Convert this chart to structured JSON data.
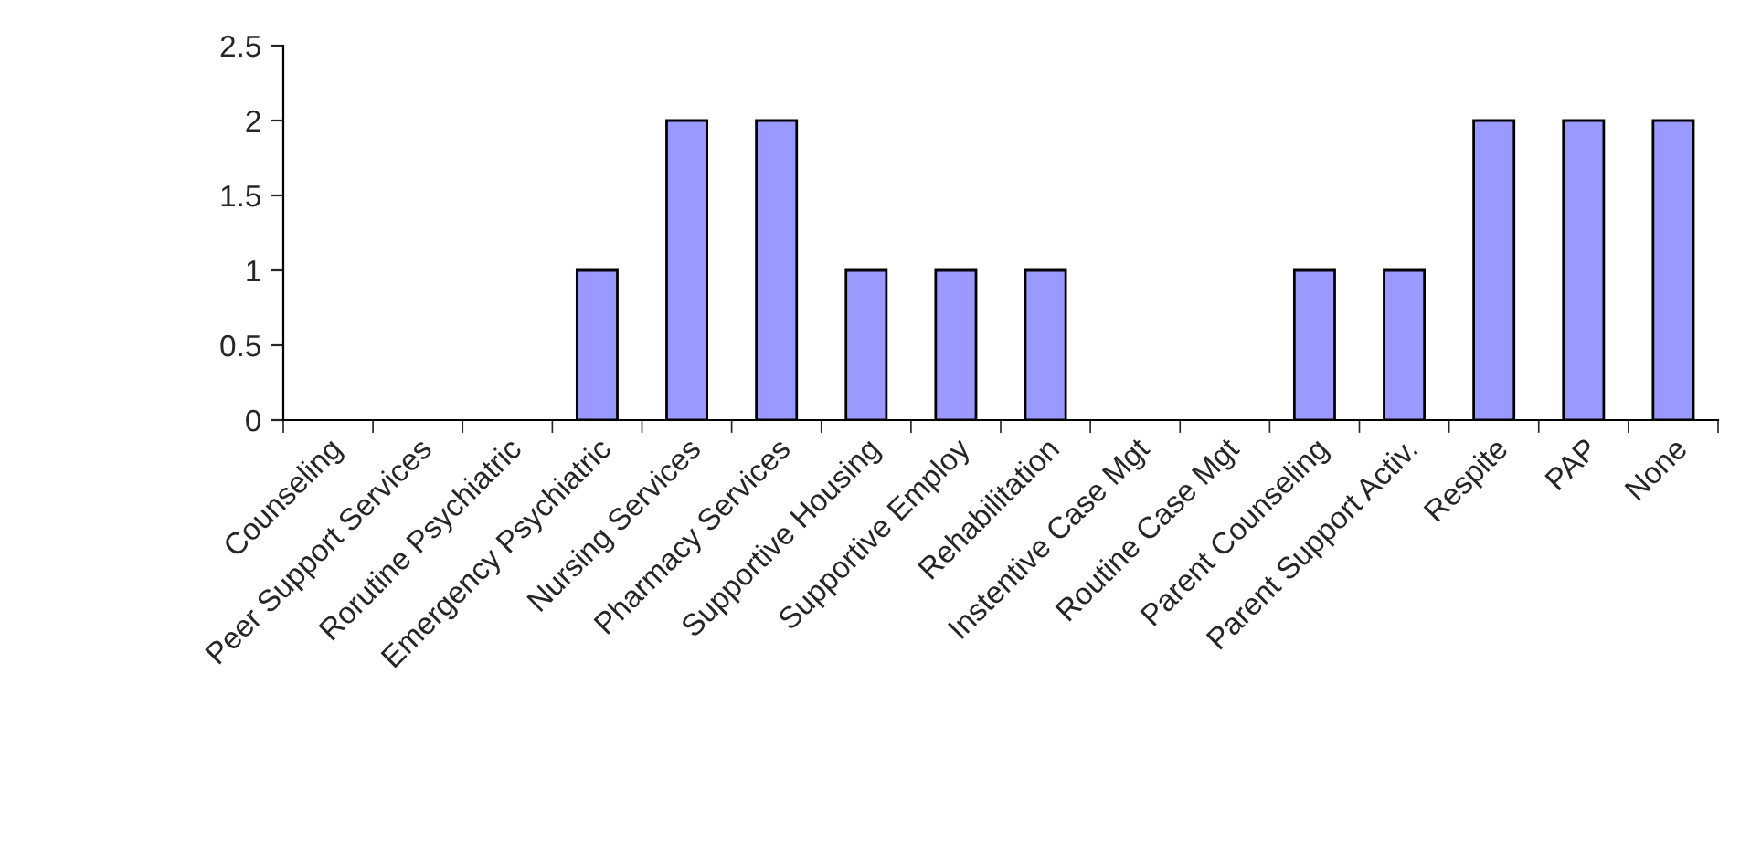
{
  "chart_data": {
    "type": "bar",
    "categories": [
      "Counseling",
      "Peer Support Services",
      "Rorutine Psychiatric",
      "Emergency Psychiatric",
      "Nursing Services",
      "Pharmacy Services",
      "Supportive Housing",
      "Supportive Employ",
      "Rehabilitation",
      "Instentive Case Mgt",
      "Routine Case Mgt",
      "Parent Counseling",
      "Parent Support Activ.",
      "Respite",
      "PAP",
      "None"
    ],
    "values": [
      0,
      0,
      0,
      1,
      2,
      2,
      1,
      1,
      1,
      0,
      0,
      1,
      1,
      2,
      2,
      2
    ],
    "color": "#9999ff",
    "ylim": [
      0,
      2.5
    ],
    "yticks": [
      0,
      0.5,
      1,
      1.5,
      2,
      2.5
    ],
    "grid": false,
    "legend": false
  }
}
